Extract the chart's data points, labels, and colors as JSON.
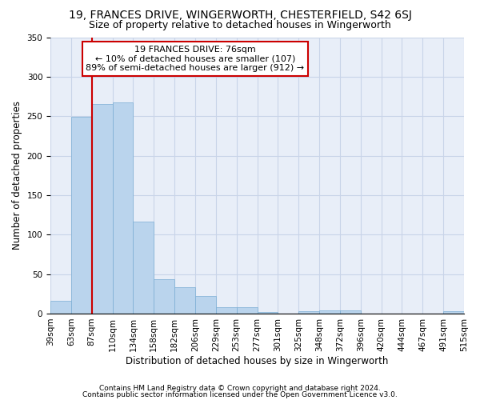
{
  "title": "19, FRANCES DRIVE, WINGERWORTH, CHESTERFIELD, S42 6SJ",
  "subtitle": "Size of property relative to detached houses in Wingerworth",
  "xlabel": "Distribution of detached houses by size in Wingerworth",
  "ylabel": "Number of detached properties",
  "footnote1": "Contains HM Land Registry data © Crown copyright and database right 2024.",
  "footnote2": "Contains public sector information licensed under the Open Government Licence v3.0.",
  "annotation_line1": "19 FRANCES DRIVE: 76sqm",
  "annotation_line2": "← 10% of detached houses are smaller (107)",
  "annotation_line3": "89% of semi-detached houses are larger (912) →",
  "bar_values": [
    16,
    249,
    265,
    267,
    116,
    44,
    33,
    22,
    8,
    8,
    2,
    0,
    3,
    4,
    4,
    0,
    0,
    0,
    0,
    3
  ],
  "categories": [
    "39sqm",
    "63sqm",
    "87sqm",
    "110sqm",
    "134sqm",
    "158sqm",
    "182sqm",
    "206sqm",
    "229sqm",
    "253sqm",
    "277sqm",
    "301sqm",
    "325sqm",
    "348sqm",
    "372sqm",
    "396sqm",
    "420sqm",
    "444sqm",
    "467sqm",
    "491sqm",
    "515sqm"
  ],
  "bar_color": "#bad4ed",
  "bar_edge_color": "#7aadd4",
  "vline_x": 2.0,
  "vline_color": "#cc0000",
  "ylim": [
    0,
    350
  ],
  "yticks": [
    0,
    50,
    100,
    150,
    200,
    250,
    300,
    350
  ],
  "grid_color": "#c8d4e8",
  "background_color": "#e8eef8",
  "annotation_box_color": "white",
  "annotation_box_edge": "#cc0000",
  "title_fontsize": 10,
  "subtitle_fontsize": 9,
  "axis_label_fontsize": 8.5,
  "tick_fontsize": 7.5,
  "annotation_fontsize": 8,
  "footnote_fontsize": 6.5
}
